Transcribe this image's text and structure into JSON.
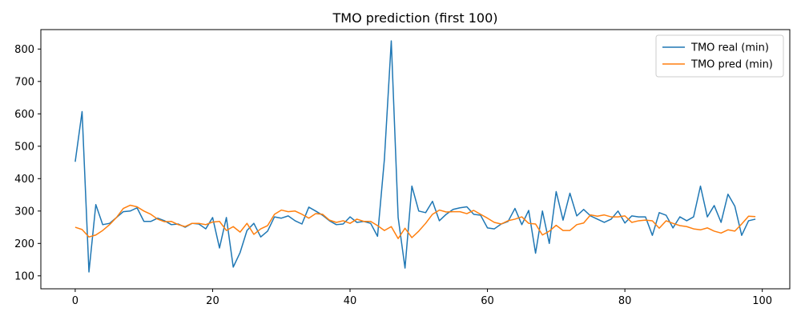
{
  "chart_data": {
    "type": "line",
    "title": "TMO prediction (first 100)",
    "xlabel": "",
    "ylabel": "",
    "xlim": [
      -5,
      104
    ],
    "ylim": [
      60,
      860
    ],
    "xticks": [
      0,
      20,
      40,
      60,
      80,
      100
    ],
    "yticks": [
      100,
      200,
      300,
      400,
      500,
      600,
      700,
      800
    ],
    "legend_position": "top-right",
    "x": [
      0,
      1,
      2,
      3,
      4,
      5,
      6,
      7,
      8,
      9,
      10,
      11,
      12,
      13,
      14,
      15,
      16,
      17,
      18,
      19,
      20,
      21,
      22,
      23,
      24,
      25,
      26,
      27,
      28,
      29,
      30,
      31,
      32,
      33,
      34,
      35,
      36,
      37,
      38,
      39,
      40,
      41,
      42,
      43,
      44,
      45,
      46,
      47,
      48,
      49,
      50,
      51,
      52,
      53,
      54,
      55,
      56,
      57,
      58,
      59,
      60,
      61,
      62,
      63,
      64,
      65,
      66,
      67,
      68,
      69,
      70,
      71,
      72,
      73,
      74,
      75,
      76,
      77,
      78,
      79,
      80,
      81,
      82,
      83,
      84,
      85,
      86,
      87,
      88,
      89,
      90,
      91,
      92,
      93,
      94,
      95,
      96,
      97,
      98,
      99
    ],
    "series": [
      {
        "name": "TMO real (min)",
        "color": "#1f77b4",
        "values": [
          452,
          607,
          112,
          320,
          258,
          262,
          280,
          298,
          300,
          310,
          268,
          268,
          278,
          270,
          258,
          260,
          250,
          262,
          260,
          245,
          280,
          186,
          280,
          127,
          172,
          240,
          262,
          220,
          238,
          282,
          278,
          285,
          270,
          260,
          312,
          300,
          287,
          270,
          258,
          260,
          282,
          265,
          268,
          262,
          222,
          460,
          825,
          280,
          124,
          377,
          300,
          295,
          330,
          270,
          290,
          305,
          310,
          313,
          290,
          287,
          248,
          245,
          260,
          268,
          308,
          258,
          302,
          170,
          300,
          200,
          360,
          272,
          355,
          285,
          305,
          285,
          275,
          265,
          275,
          300,
          263,
          285,
          282,
          282,
          225,
          295,
          287,
          248,
          282,
          270,
          282,
          377,
          282,
          317,
          265,
          352,
          315,
          225,
          270,
          275
        ]
      },
      {
        "name": "TMO pred (min)",
        "color": "#ff7f0e",
        "values": [
          250,
          243,
          220,
          226,
          240,
          258,
          280,
          308,
          318,
          313,
          300,
          290,
          275,
          267,
          268,
          258,
          252,
          262,
          262,
          258,
          266,
          268,
          240,
          252,
          235,
          262,
          228,
          245,
          255,
          290,
          303,
          298,
          300,
          290,
          278,
          292,
          290,
          272,
          265,
          270,
          262,
          275,
          268,
          268,
          255,
          240,
          252,
          215,
          247,
          218,
          238,
          262,
          290,
          303,
          297,
          298,
          298,
          292,
          302,
          290,
          278,
          265,
          260,
          270,
          275,
          282,
          262,
          260,
          226,
          238,
          256,
          240,
          240,
          258,
          263,
          288,
          284,
          288,
          282,
          282,
          285,
          265,
          270,
          272,
          270,
          247,
          270,
          262,
          255,
          252,
          245,
          242,
          248,
          238,
          232,
          242,
          238,
          260,
          284,
          283
        ]
      }
    ]
  }
}
